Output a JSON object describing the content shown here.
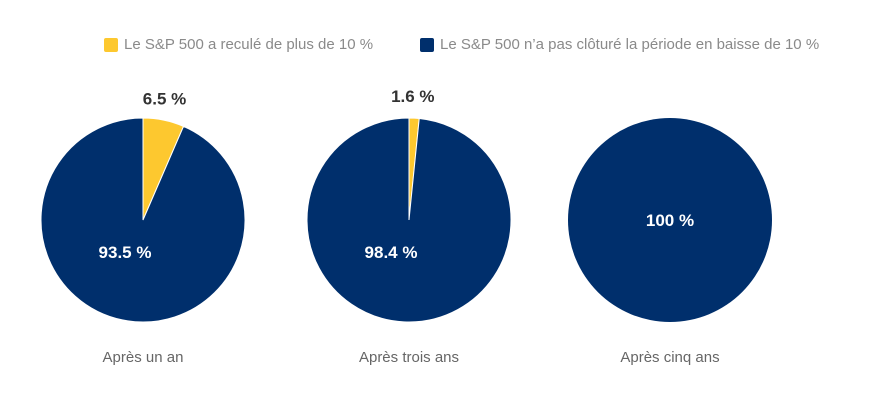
{
  "colors": {
    "declined": "#FDC82F",
    "not_declined": "#002F6C",
    "caption_text": "#666666",
    "outer_label_text": "#333333",
    "inner_label_text": "#ffffff"
  },
  "legend": {
    "declined_label": "Le S&P 500 a reculé de plus de 10 %",
    "not_declined_label": "Le S&P 500 n’a pas clôturé la période en baisse de 10 %"
  },
  "chart_data": [
    {
      "type": "pie",
      "caption": "Après un an",
      "slices": [
        {
          "name": "Le S&P 500 a reculé de plus de 10 %",
          "value": 6.5,
          "label": "6.5 %"
        },
        {
          "name": "Le S&P 500 n’a pas clôturé la période en baisse de 10 %",
          "value": 93.5,
          "label": "93.5 %"
        }
      ]
    },
    {
      "type": "pie",
      "caption": "Après trois ans",
      "slices": [
        {
          "name": "Le S&P 500 a reculé de plus de 10 %",
          "value": 1.6,
          "label": "1.6 %"
        },
        {
          "name": "Le S&P 500 n’a pas clôturé la période en baisse de 10 %",
          "value": 98.4,
          "label": "98.4 %"
        }
      ]
    },
    {
      "type": "pie",
      "caption": "Après cinq ans",
      "slices": [
        {
          "name": "Le S&P 500 a reculé de plus de 10 %",
          "value": 0,
          "label": ""
        },
        {
          "name": "Le S&P 500 n’a pas clôturé la période en baisse de 10 %",
          "value": 100,
          "label": "100 %"
        }
      ]
    }
  ]
}
